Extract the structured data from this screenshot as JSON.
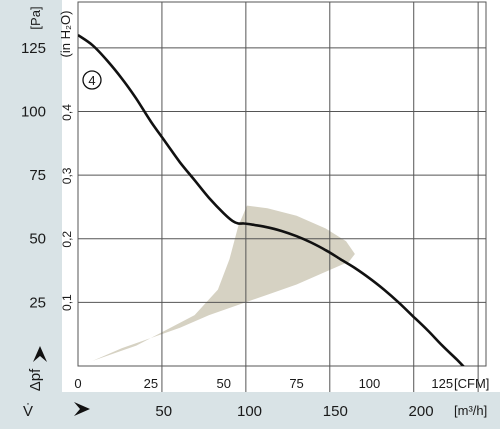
{
  "chart_data": {
    "type": "line",
    "title": "",
    "curve_label": "4",
    "ylabel_primary": {
      "unit": "[Pa]",
      "symbol": "Δpf"
    },
    "ylabel_secondary": "(in H₂O)",
    "xlabel_primary": {
      "unit": "[CFM]"
    },
    "xlabel_secondary": {
      "unit": "[m³/h]",
      "symbol": "V̇"
    },
    "y_ticks_pa": [
      "125",
      "100",
      "75",
      "50",
      "25"
    ],
    "y_ticks_inh2o": [
      "0,4",
      "0,3",
      "0,2",
      "0,1"
    ],
    "x_ticks_cfm": [
      "0",
      "25",
      "50",
      "75",
      "100",
      "125"
    ],
    "x_ticks_m3h": [
      "50",
      "100",
      "150",
      "200"
    ],
    "xlim_cfm": [
      0,
      140
    ],
    "ylim_pa": [
      0,
      143
    ],
    "grid": true,
    "series": [
      {
        "values_note": "",
        "x_cfm": [
          0,
          5,
          10,
          15,
          20,
          25,
          30,
          35,
          40,
          45,
          50,
          53,
          55,
          57,
          60,
          65,
          70,
          75,
          80,
          85,
          90,
          95,
          100,
          105,
          110,
          115,
          120,
          125,
          130,
          135,
          140
        ],
        "y_pa": [
          130,
          126,
          120,
          113,
          105,
          96,
          88,
          80,
          73,
          66,
          60,
          57,
          56,
          56,
          55.5,
          54.5,
          53,
          51,
          48.5,
          45.5,
          42,
          38.5,
          34.5,
          30,
          25,
          19.5,
          14,
          8,
          2.5,
          -3.5,
          -10
        ]
      }
    ],
    "operating_area": {
      "x_cfm": [
        0,
        20,
        40,
        48,
        52,
        55,
        58,
        65,
        75,
        85,
        92,
        95,
        93,
        85,
        75,
        65,
        55,
        45,
        35,
        25,
        15,
        5,
        0
      ],
      "y_pa": [
        0,
        8,
        20,
        30,
        42,
        55,
        63,
        62,
        59,
        54,
        49,
        44,
        41,
        37,
        32,
        28,
        24,
        20,
        15,
        11,
        7,
        2,
        0
      ]
    }
  },
  "colors": {
    "grid": "#555555",
    "curve": "#111111",
    "area": "#d6d2c3",
    "panel": "#d9e3e6"
  }
}
